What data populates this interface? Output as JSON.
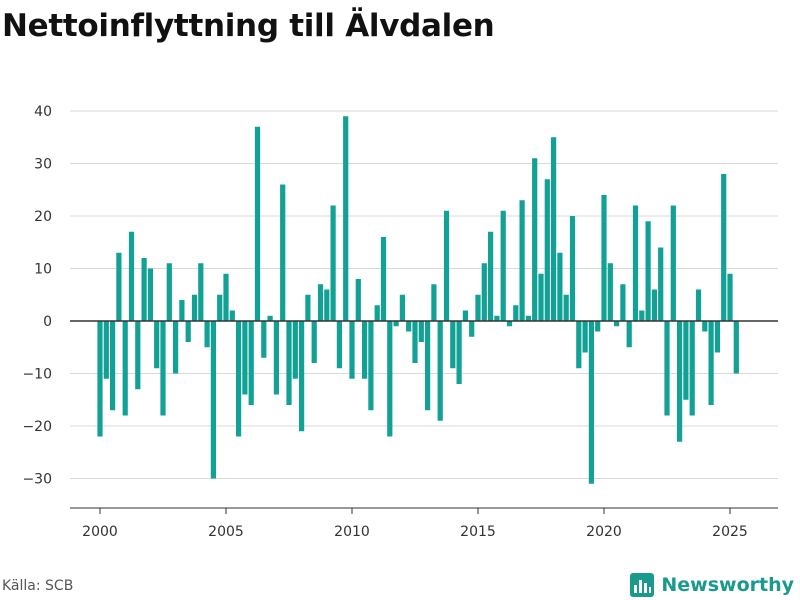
{
  "title": "Nettoinflyttning till Älvdalen",
  "source": "Källa: SCB",
  "brand": "Newsworthy",
  "colors": {
    "bar": "#12a195",
    "grid": "#d9d9d9",
    "zero": "#333333",
    "brand": "#1a9a8c"
  },
  "icons": {
    "brand": "bar-chart-icon"
  },
  "chart_data": {
    "type": "bar",
    "title": "Nettoinflyttning till Älvdalen",
    "xlabel": "",
    "ylabel": "",
    "ylim": [
      -35,
      42
    ],
    "yticks": [
      -30,
      -20,
      -10,
      0,
      10,
      20,
      30,
      40
    ],
    "ytick_labels": [
      "−30",
      "−20",
      "−10",
      "0",
      "10",
      "20",
      "30",
      "40"
    ],
    "xlim": [
      2000.0,
      2025.25
    ],
    "xticks": [
      2000,
      2005,
      2010,
      2015,
      2020,
      2025
    ],
    "xtick_labels": [
      "2000",
      "2005",
      "2010",
      "2015",
      "2020",
      "2025"
    ],
    "x_unit": "quarter",
    "grid": true,
    "legend": "none",
    "categories": [
      "2000 K1",
      "2000 K2",
      "2000 K3",
      "2000 K4",
      "2001 K1",
      "2001 K2",
      "2001 K3",
      "2001 K4",
      "2002 K1",
      "2002 K2",
      "2002 K3",
      "2002 K4",
      "2003 K1",
      "2003 K2",
      "2003 K3",
      "2003 K4",
      "2004 K1",
      "2004 K2",
      "2004 K3",
      "2004 K4",
      "2005 K1",
      "2005 K2",
      "2005 K3",
      "2005 K4",
      "2006 K1",
      "2006 K2",
      "2006 K3",
      "2006 K4",
      "2007 K1",
      "2007 K2",
      "2007 K3",
      "2007 K4",
      "2008 K1",
      "2008 K2",
      "2008 K3",
      "2008 K4",
      "2009 K1",
      "2009 K2",
      "2009 K3",
      "2009 K4",
      "2010 K1",
      "2010 K2",
      "2010 K3",
      "2010 K4",
      "2011 K1",
      "2011 K2",
      "2011 K3",
      "2011 K4",
      "2012 K1",
      "2012 K2",
      "2012 K3",
      "2012 K4",
      "2013 K1",
      "2013 K2",
      "2013 K3",
      "2013 K4",
      "2014 K1",
      "2014 K2",
      "2014 K3",
      "2014 K4",
      "2015 K1",
      "2015 K2",
      "2015 K3",
      "2015 K4",
      "2016 K1",
      "2016 K2",
      "2016 K3",
      "2016 K4",
      "2017 K1",
      "2017 K2",
      "2017 K3",
      "2017 K4",
      "2018 K1",
      "2018 K2",
      "2018 K3",
      "2018 K4",
      "2019 K1",
      "2019 K2",
      "2019 K3",
      "2019 K4",
      "2020 K1",
      "2020 K2",
      "2020 K3",
      "2020 K4",
      "2021 K1",
      "2021 K2",
      "2021 K3",
      "2021 K4",
      "2022 K1",
      "2022 K2",
      "2022 K3",
      "2022 K4",
      "2023 K1",
      "2023 K2",
      "2023 K3",
      "2023 K4",
      "2024 K1",
      "2024 K2",
      "2024 K3",
      "2024 K4",
      "2025 K1",
      "2025 K2"
    ],
    "values": [
      -22,
      -11,
      -17,
      13,
      -18,
      17,
      -13,
      12,
      10,
      -9,
      -18,
      11,
      -10,
      4,
      -4,
      5,
      11,
      -5,
      -30,
      5,
      9,
      2,
      -22,
      -14,
      -16,
      37,
      -7,
      1,
      -14,
      26,
      -16,
      -11,
      -21,
      5,
      -8,
      7,
      6,
      22,
      -9,
      39,
      -11,
      8,
      -11,
      -17,
      3,
      16,
      -22,
      -1,
      5,
      -2,
      -8,
      -4,
      -17,
      7,
      -19,
      21,
      -9,
      -12,
      2,
      -3,
      5,
      11,
      17,
      1,
      21,
      -1,
      3,
      23,
      1,
      31,
      9,
      27,
      35,
      13,
      5,
      20,
      -9,
      -6,
      -31,
      -2,
      24,
      11,
      -1,
      7,
      -5,
      22,
      2,
      19,
      6,
      14,
      -18,
      22,
      -23,
      -15,
      -18,
      6,
      -2,
      -16,
      -6,
      28,
      9,
      -10
    ]
  }
}
